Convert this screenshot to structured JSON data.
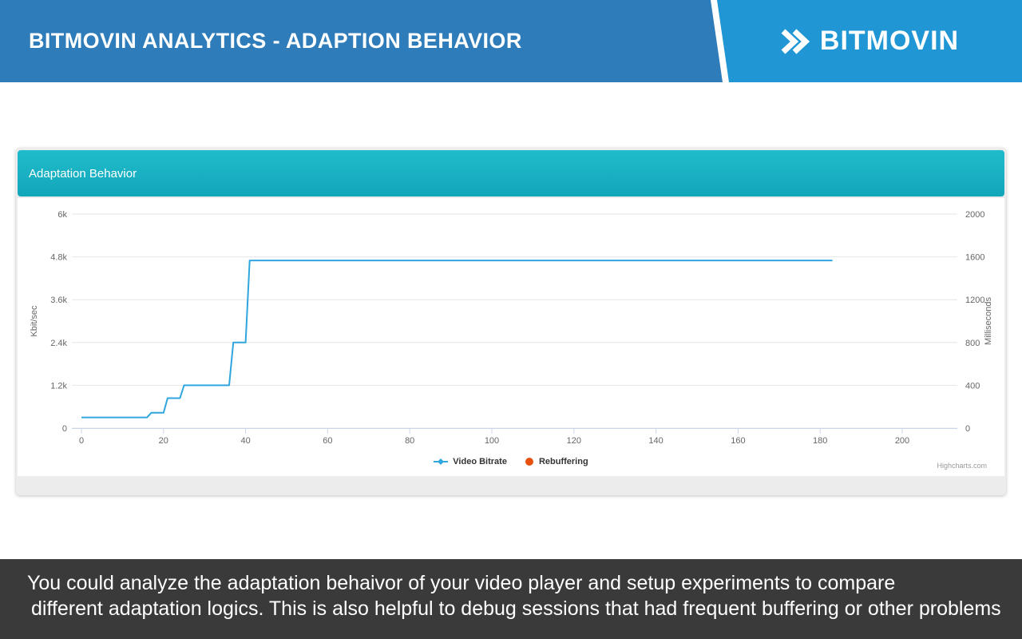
{
  "header": {
    "title": "BITMOVIN ANALYTICS - ADAPTION BEHAVIOR",
    "brand": "BITMOVIN"
  },
  "panel": {
    "title": "Adaptation Behavior"
  },
  "colors": {
    "header_left_bg": "#2e7cb9",
    "header_right_bg": "#2097d4",
    "panel_header_start": "#20bccb",
    "panel_header_end": "#12a6ba",
    "caption_bg": "#3a3a3a",
    "chart_line": "#30a6de",
    "rebuffering": "#e8500f"
  },
  "chart_data": {
    "type": "line",
    "title": "",
    "grid": "horizontal",
    "legend_position": "bottom-center",
    "x_axis": {
      "ticks": [
        0,
        20,
        40,
        60,
        80,
        100,
        120,
        140,
        160,
        180,
        200
      ],
      "min": 0,
      "max": 213
    },
    "left_axis": {
      "title": "Kbit/sec",
      "tick_values": [
        0,
        1200,
        2400,
        3600,
        4800,
        6000
      ],
      "tick_labels": [
        "0",
        "1.2k",
        "2.4k",
        "3.6k",
        "4.8k",
        "6k"
      ],
      "max": 6000
    },
    "right_axis": {
      "title": "Milliseconds",
      "tick_labels": [
        "0",
        "400",
        "800",
        "1200",
        "1600",
        "2000"
      ],
      "max": 2000
    },
    "series": [
      {
        "name": "Video Bitrate",
        "color": "#30a6de",
        "marker": "line-diamond-icon",
        "points": [
          [
            0,
            300
          ],
          [
            16,
            300
          ],
          [
            17,
            430
          ],
          [
            20,
            430
          ],
          [
            21,
            840
          ],
          [
            24,
            840
          ],
          [
            25,
            1200
          ],
          [
            36,
            1200
          ],
          [
            37,
            2400
          ],
          [
            40,
            2400
          ],
          [
            41,
            4700
          ],
          [
            183,
            4700
          ]
        ]
      },
      {
        "name": "Rebuffering",
        "color": "#e8500f",
        "marker": "circle-icon",
        "points": []
      }
    ],
    "credit": "Highcharts.com"
  },
  "caption": {
    "line1": "You could analyze the adaptation behaivor of your video player and setup experiments to compare",
    "line2": "different adaptation logics. This is also helpful to debug sessions that had frequent buffering or other problems"
  }
}
